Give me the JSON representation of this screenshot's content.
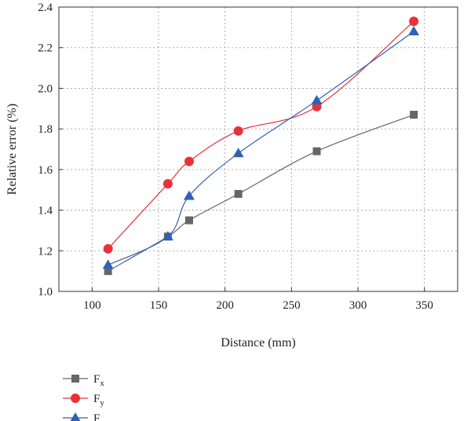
{
  "chart_data": {
    "type": "line",
    "title": "",
    "xlabel": "Distance (mm)",
    "ylabel": "Relative error (%)",
    "xlim": [
      75,
      375
    ],
    "ylim": [
      1.0,
      2.4
    ],
    "xticks": [
      100,
      150,
      200,
      250,
      300,
      350
    ],
    "yticks": [
      1.0,
      1.2,
      1.4,
      1.6,
      1.8,
      2.0,
      2.2,
      2.4
    ],
    "xtick_labels": [
      "100",
      "150",
      "200",
      "250",
      "300",
      "350"
    ],
    "ytick_labels": [
      "1.0",
      "1.2",
      "1.4",
      "1.6",
      "1.8",
      "2.0",
      "2.2",
      "2.4"
    ],
    "grid": true,
    "legend_position": "bottom-left, below plot",
    "series": [
      {
        "name": "Fx",
        "base": "F",
        "sub": "x",
        "color": "#666666",
        "marker": "square",
        "x": [
          112,
          157,
          173,
          210,
          269,
          342
        ],
        "y": [
          1.1,
          1.27,
          1.35,
          1.48,
          1.69,
          1.87
        ]
      },
      {
        "name": "Fy",
        "base": "F",
        "sub": "y",
        "color": "#e8323a",
        "marker": "circle",
        "x": [
          112,
          157,
          173,
          210,
          269,
          342
        ],
        "y": [
          1.21,
          1.53,
          1.64,
          1.79,
          1.91,
          2.33
        ]
      },
      {
        "name": "Fz",
        "base": "F",
        "sub": "z",
        "color": "#2f62b6",
        "marker": "triangle",
        "x": [
          112,
          157,
          173,
          210,
          269,
          342
        ],
        "y": [
          1.13,
          1.27,
          1.47,
          1.68,
          1.94,
          2.28
        ]
      }
    ]
  }
}
